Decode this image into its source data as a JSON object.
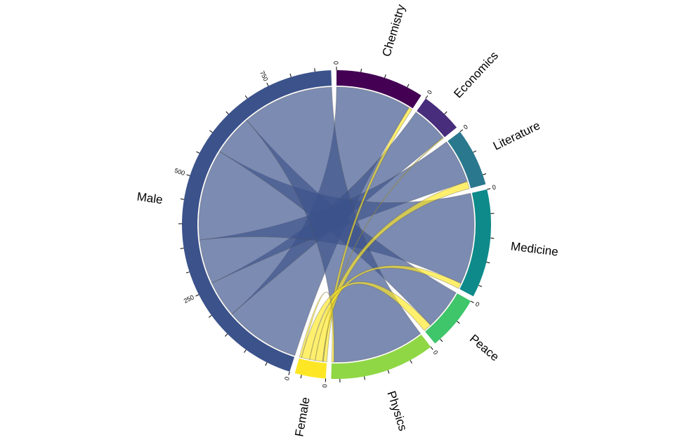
{
  "chart_data": {
    "type": "chord",
    "categories": [
      "Chemistry",
      "Economics",
      "Literature",
      "Medicine",
      "Peace",
      "Physics"
    ],
    "category_colors": [
      "#440154",
      "#472d7b",
      "#2a788e",
      "#0e8a8a",
      "#3fc56a",
      "#8fd744"
    ],
    "series": [
      {
        "name": "Male",
        "color": "#3b528b",
        "values": [
          175,
          85,
          103,
          212,
          95,
          213
        ]
      },
      {
        "name": "Female",
        "color": "#fde725",
        "values": [
          8,
          2,
          17,
          13,
          19,
          5
        ]
      }
    ],
    "tick_labels": {
      "Chemistry": [
        0
      ],
      "Economics": [
        0
      ],
      "Literature": [
        0
      ],
      "Medicine": [
        0
      ],
      "Peace": [
        0
      ],
      "Physics": [
        0
      ],
      "Female": [
        0
      ],
      "Male": [
        0,
        250,
        500,
        750
      ]
    },
    "tick_step": 50
  }
}
